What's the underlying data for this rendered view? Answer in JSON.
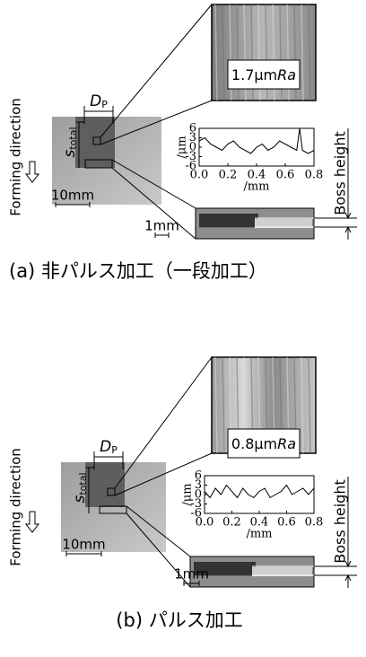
{
  "panels": [
    {
      "caption": "(a) 非パルス加工（一段加工）",
      "forming_direction": "Forming direction",
      "scale_large": "10mm",
      "scale_small": "1mm",
      "dp": {
        "symbol": "D",
        "subscript": "P"
      },
      "s": {
        "symbol": "s",
        "subscript": "total"
      },
      "roughness": {
        "value": "1.7μm",
        "unit": "Ra"
      },
      "boss_height": "Boss height",
      "profile": {
        "type": "line",
        "x": [
          0,
          0.04,
          0.08,
          0.12,
          0.16,
          0.2,
          0.24,
          0.28,
          0.32,
          0.36,
          0.4,
          0.44,
          0.48,
          0.52,
          0.56,
          0.6,
          0.64,
          0.68,
          0.7,
          0.72,
          0.76,
          0.8
        ],
        "values": [
          2,
          3,
          1,
          0,
          -1,
          1,
          2,
          0,
          -1,
          -2,
          0,
          1,
          -1,
          0,
          2,
          1,
          0,
          -1,
          6,
          -1,
          -2,
          -1
        ],
        "xlim": [
          0,
          0.8
        ],
        "ylim": [
          -6,
          6
        ],
        "xticks": [
          {
            "value": 0,
            "label": "0.0"
          },
          {
            "value": 0.2,
            "label": "0.2"
          },
          {
            "value": 0.4,
            "label": "0.4"
          },
          {
            "value": 0.6,
            "label": "0.6"
          },
          {
            "value": 0.8,
            "label": "0.8"
          }
        ],
        "yticks": [
          6,
          3,
          0,
          -3,
          -6
        ],
        "ylabel": "/μm",
        "xlabel": "/mm"
      }
    },
    {
      "caption": "(b) パルス加工",
      "forming_direction": "Forming direction",
      "scale_large": "10mm",
      "scale_small": "1mm",
      "dp": {
        "symbol": "D",
        "subscript": "P"
      },
      "s": {
        "symbol": "s",
        "subscript": "total"
      },
      "roughness": {
        "value": "0.8μm",
        "unit": "Ra"
      },
      "boss_height": "Boss height",
      "profile": {
        "type": "line",
        "x": [
          0,
          0.04,
          0.08,
          0.12,
          0.16,
          0.2,
          0.24,
          0.28,
          0.32,
          0.36,
          0.4,
          0.44,
          0.48,
          0.52,
          0.56,
          0.6,
          0.64,
          0.68,
          0.72,
          0.76,
          0.8
        ],
        "values": [
          1,
          -1,
          2,
          0,
          3,
          1,
          -1,
          2,
          0,
          -1,
          1,
          2,
          -1,
          0,
          1,
          3,
          0,
          1,
          2,
          0,
          2
        ],
        "xlim": [
          0,
          0.8
        ],
        "ylim": [
          -6,
          6
        ],
        "xticks": [
          {
            "value": 0,
            "label": "0.0"
          },
          {
            "value": 0.2,
            "label": "0.2"
          },
          {
            "value": 0.4,
            "label": "0.4"
          },
          {
            "value": 0.6,
            "label": "0.6"
          },
          {
            "value": 0.8,
            "label": "0.8"
          }
        ],
        "yticks": [
          6,
          3,
          0,
          -3,
          -6
        ],
        "ylabel": "/μm",
        "xlabel": "/mm"
      }
    }
  ]
}
